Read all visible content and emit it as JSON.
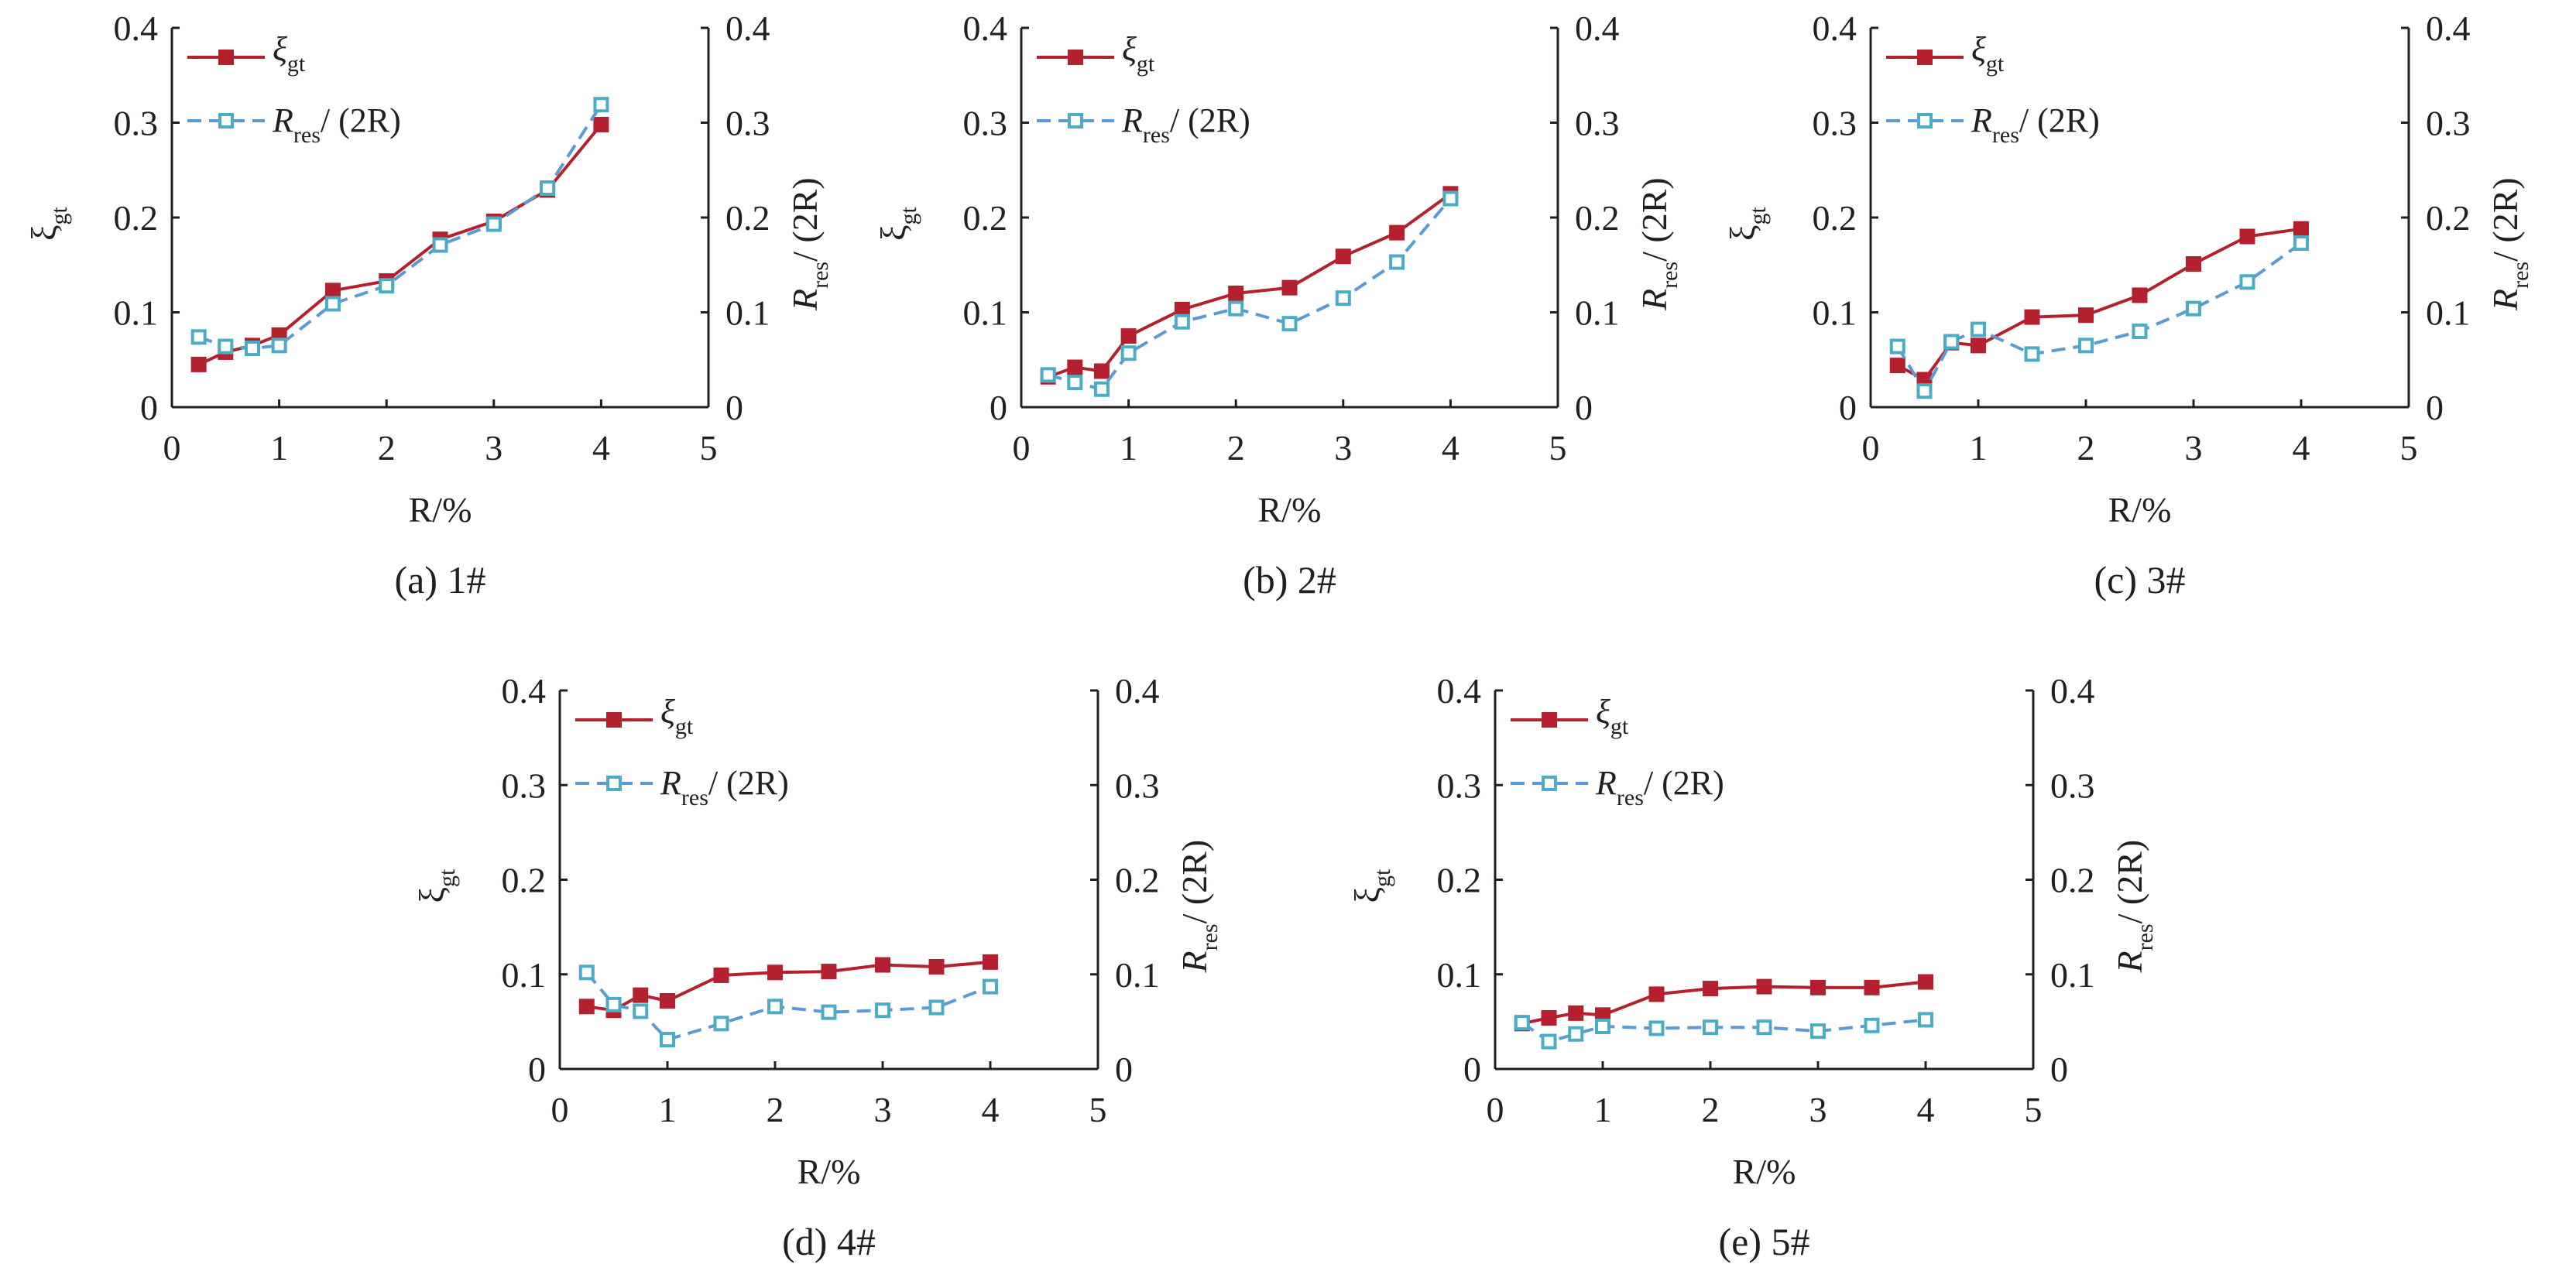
{
  "colors": {
    "xi": "#b5202e",
    "rres": "#5b9bd5",
    "rres_marker": "#4bacc6",
    "axis": "#231f20"
  },
  "chart_data": [
    {
      "type": "line",
      "caption": "(a) 1#",
      "xlabel": "R/%",
      "ylabel_left": {
        "main": "ξ",
        "sub": "gt"
      },
      "ylabel_right": {
        "main": "R",
        "sub": "res",
        "tail": "/ (2R)"
      },
      "xlim": [
        0,
        5
      ],
      "ylim": [
        0,
        0.4
      ],
      "xticks": [
        "0",
        "1",
        "2",
        "3",
        "4",
        "5"
      ],
      "yticks": [
        "0",
        "0.1",
        "0.2",
        "0.3",
        "0.4"
      ],
      "legend": {
        "position": "top-left",
        "entries": [
          {
            "main": "ξ",
            "sub": "gt"
          },
          {
            "main": "R",
            "sub": "res",
            "tail": "/ (2R)"
          }
        ]
      },
      "x": [
        0.25,
        0.5,
        0.75,
        1,
        1.5,
        2,
        2.5,
        3,
        3.5,
        4
      ],
      "series": [
        {
          "name": "ξgt",
          "values": [
            0.045,
            0.058,
            0.065,
            0.076,
            0.123,
            0.133,
            0.177,
            0.196,
            0.229,
            0.298
          ]
        },
        {
          "name": "Rres/(2R)",
          "values": [
            0.074,
            0.064,
            0.062,
            0.065,
            0.109,
            0.128,
            0.171,
            0.193,
            0.231,
            0.319
          ]
        }
      ]
    },
    {
      "type": "line",
      "caption": "(b) 2#",
      "xlabel": "R/%",
      "ylabel_left": {
        "main": "ξ",
        "sub": "gt"
      },
      "ylabel_right": {
        "main": "R",
        "sub": "res",
        "tail": "/ (2R)"
      },
      "xlim": [
        0,
        5
      ],
      "ylim": [
        0,
        0.4
      ],
      "xticks": [
        "0",
        "1",
        "2",
        "3",
        "4",
        "5"
      ],
      "yticks": [
        "0",
        "0.1",
        "0.2",
        "0.3",
        "0.4"
      ],
      "legend": {
        "position": "top-left",
        "entries": [
          {
            "main": "ξ",
            "sub": "gt"
          },
          {
            "main": "R",
            "sub": "res",
            "tail": "/ (2R)"
          }
        ]
      },
      "x": [
        0.25,
        0.5,
        0.75,
        1,
        1.5,
        2,
        2.5,
        3,
        3.5,
        4
      ],
      "series": [
        {
          "name": "ξgt",
          "values": [
            0.032,
            0.042,
            0.038,
            0.075,
            0.103,
            0.12,
            0.126,
            0.159,
            0.184,
            0.225
          ]
        },
        {
          "name": "Rres/(2R)",
          "values": [
            0.034,
            0.026,
            0.019,
            0.057,
            0.09,
            0.104,
            0.088,
            0.115,
            0.153,
            0.22
          ]
        }
      ]
    },
    {
      "type": "line",
      "caption": "(c) 3#",
      "xlabel": "R/%",
      "ylabel_left": {
        "main": "ξ",
        "sub": "gt"
      },
      "ylabel_right": {
        "main": "R",
        "sub": "res",
        "tail": "/ (2R)"
      },
      "xlim": [
        0,
        5
      ],
      "ylim": [
        0,
        0.4
      ],
      "xticks": [
        "0",
        "1",
        "2",
        "3",
        "4",
        "5"
      ],
      "yticks": [
        "0",
        "0.1",
        "0.2",
        "0.3",
        "0.4"
      ],
      "legend": {
        "position": "top-left",
        "entries": [
          {
            "main": "ξ",
            "sub": "gt"
          },
          {
            "main": "R",
            "sub": "res",
            "tail": "/ (2R)"
          }
        ]
      },
      "x": [
        0.25,
        0.5,
        0.75,
        1,
        1.5,
        2,
        2.5,
        3,
        3.5,
        4
      ],
      "series": [
        {
          "name": "ξgt",
          "values": [
            0.044,
            0.029,
            0.068,
            0.065,
            0.095,
            0.097,
            0.118,
            0.151,
            0.18,
            0.188
          ]
        },
        {
          "name": "Rres/(2R)",
          "values": [
            0.064,
            0.017,
            0.069,
            0.082,
            0.056,
            0.065,
            0.08,
            0.104,
            0.132,
            0.173
          ]
        }
      ]
    },
    {
      "type": "line",
      "caption": "(d) 4#",
      "xlabel": "R/%",
      "ylabel_left": {
        "main": "ξ",
        "sub": "gt"
      },
      "ylabel_right": {
        "main": "R",
        "sub": "res",
        "tail": "/ (2R)"
      },
      "xlim": [
        0,
        5
      ],
      "ylim": [
        0,
        0.4
      ],
      "xticks": [
        "0",
        "1",
        "2",
        "3",
        "4",
        "5"
      ],
      "yticks": [
        "0",
        "0.1",
        "0.2",
        "0.3",
        "0.4"
      ],
      "legend": {
        "position": "top-left",
        "entries": [
          {
            "main": "ξ",
            "sub": "gt"
          },
          {
            "main": "R",
            "sub": "res",
            "tail": "/ (2R)"
          }
        ]
      },
      "x": [
        0.25,
        0.5,
        0.75,
        1,
        1.5,
        2,
        2.5,
        3,
        3.5,
        4
      ],
      "series": [
        {
          "name": "ξgt",
          "values": [
            0.066,
            0.062,
            0.078,
            0.072,
            0.099,
            0.102,
            0.103,
            0.11,
            0.108,
            0.113
          ]
        },
        {
          "name": "Rres/(2R)",
          "values": [
            0.102,
            0.068,
            0.061,
            0.031,
            0.048,
            0.066,
            0.06,
            0.062,
            0.065,
            0.087
          ]
        }
      ]
    },
    {
      "type": "line",
      "caption": "(e) 5#",
      "xlabel": "R/%",
      "ylabel_left": {
        "main": "ξ",
        "sub": "gt"
      },
      "ylabel_right": {
        "main": "R",
        "sub": "res",
        "tail": "/ (2R)"
      },
      "xlim": [
        0,
        5
      ],
      "ylim": [
        0,
        0.4
      ],
      "xticks": [
        "0",
        "1",
        "2",
        "3",
        "4",
        "5"
      ],
      "yticks": [
        "0",
        "0.1",
        "0.2",
        "0.3",
        "0.4"
      ],
      "legend": {
        "position": "top-left",
        "entries": [
          {
            "main": "ξ",
            "sub": "gt"
          },
          {
            "main": "R",
            "sub": "res",
            "tail": "/ (2R)"
          }
        ]
      },
      "x": [
        0.25,
        0.5,
        0.75,
        1,
        1.5,
        2,
        2.5,
        3,
        3.5,
        4
      ],
      "series": [
        {
          "name": "ξgt",
          "values": [
            0.048,
            0.054,
            0.059,
            0.057,
            0.079,
            0.085,
            0.087,
            0.086,
            0.086,
            0.092
          ]
        },
        {
          "name": "Rres/(2R)",
          "values": [
            0.049,
            0.029,
            0.037,
            0.045,
            0.043,
            0.044,
            0.044,
            0.04,
            0.046,
            0.052
          ]
        }
      ]
    }
  ]
}
